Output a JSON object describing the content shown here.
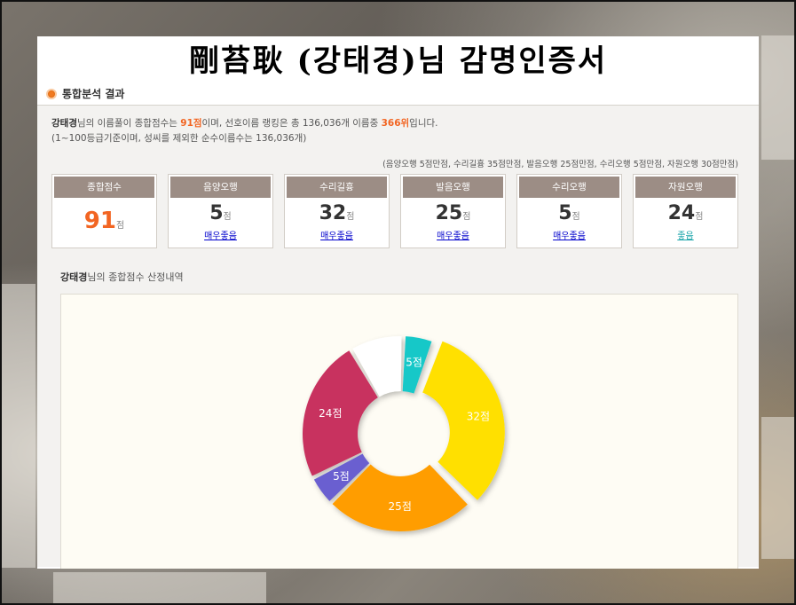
{
  "title": "剛苔耿 (강태경)님 감명인증서",
  "section": {
    "label": "통합분석 결과"
  },
  "summary": {
    "name": "강태경",
    "t1": "님의 이름풀이 종합점수는 ",
    "score": "91점",
    "t2": "이며, 선호이름 랭킹은 총 136,036개 이름중 ",
    "rank": "366위",
    "t3": "입니다.",
    "line2": "(1~100등급기준이며, 성씨를 제외한 순수이름수는 136,036개)"
  },
  "max_line": "(음양오행 5점만점, 수리길흉 35점만점, 발음오행 25점만점, 수리오행 5점만점, 자원오행 30점만점)",
  "cards": [
    {
      "label": "종합점수",
      "value": "91",
      "unit": "점",
      "grade": ""
    },
    {
      "label": "음양오행",
      "value": "5",
      "unit": "점",
      "grade": "매우좋음"
    },
    {
      "label": "수리길흉",
      "value": "32",
      "unit": "점",
      "grade": "매우좋음"
    },
    {
      "label": "발음오행",
      "value": "25",
      "unit": "점",
      "grade": "매우좋음"
    },
    {
      "label": "수리오행",
      "value": "5",
      "unit": "점",
      "grade": "매우좋음"
    },
    {
      "label": "자원오행",
      "value": "24",
      "unit": "점",
      "grade": "좋음"
    }
  ],
  "chart_heading": {
    "name": "강태경",
    "rest": "님의 종합점수 산정내역"
  },
  "chart_data": {
    "type": "pie",
    "donut": true,
    "categories": [
      "음양오행",
      "수리길흉",
      "발음오행",
      "수리오행",
      "자원오행",
      ""
    ],
    "values": [
      5,
      32,
      25,
      5,
      24,
      9
    ],
    "labels": [
      "5점",
      "32점",
      "25점",
      "5점",
      "24점",
      ""
    ],
    "colors": [
      "#12c8c8",
      "#ffe000",
      "#ff9d00",
      "#6a5fd0",
      "#c8305f",
      "#ffffff"
    ]
  },
  "colors": {
    "accent": "#f26522",
    "card_header": "#9c8d85",
    "grade_link": "#0000cc",
    "grade_good": "#16a3a8"
  }
}
